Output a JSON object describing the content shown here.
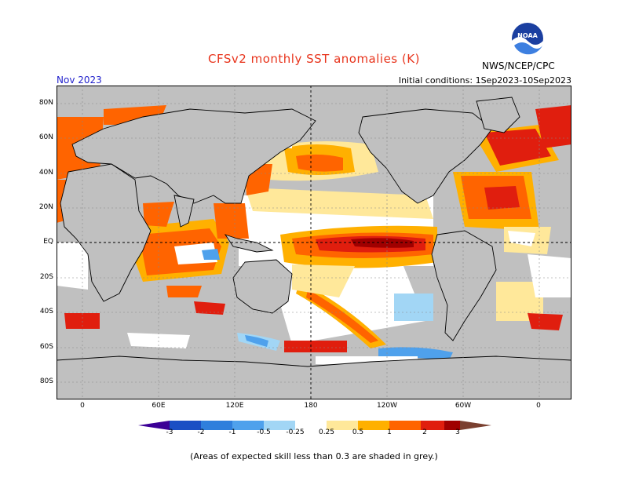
{
  "header": {
    "title": "CFSv2 monthly SST anomalies (K)",
    "agency": "NWS/NCEP/CPC",
    "logo_text": "NOAA",
    "target_month": "Nov 2023",
    "initial_conditions": "Initial conditions: 1Sep2023-10Sep2023"
  },
  "map": {
    "lat_labels": [
      "80N",
      "60N",
      "40N",
      "20N",
      "EQ",
      "20S",
      "40S",
      "60S",
      "80S"
    ],
    "lon_labels": [
      "0",
      "60E",
      "120E",
      "180",
      "120W",
      "60W",
      "0"
    ],
    "colors": {
      "no_skill": "#c0c0c0",
      "land": "#c0c0c0",
      "near_zero": "#ffffff",
      "coast": "#000000"
    }
  },
  "colorbar": {
    "labels": [
      "-3",
      "-2",
      "-1",
      "-0.5",
      "-0.25",
      "0.25",
      "0.5",
      "1",
      "2",
      "3"
    ],
    "colors": [
      "#3c0096",
      "#1a4fc4",
      "#2f7fdc",
      "#4fa1ec",
      "#a2d6f5",
      "#ffffff",
      "#ffe89a",
      "#ffb000",
      "#ff6400",
      "#e01e0e",
      "#a00000",
      "#7a4030"
    ]
  },
  "footnote": "(Areas of expected skill less than 0.3 are shaded in grey.)"
}
